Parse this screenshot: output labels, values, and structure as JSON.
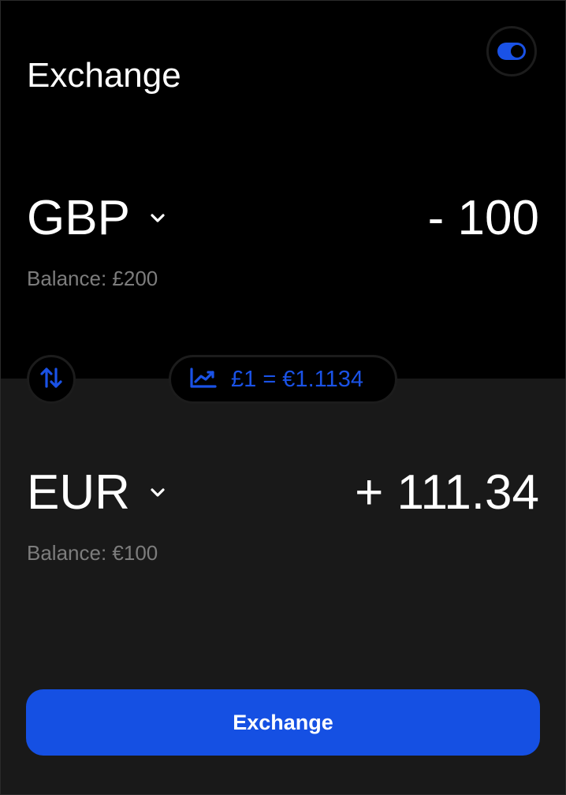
{
  "header": {
    "title": "Exchange"
  },
  "from": {
    "currency": "GBP",
    "amount": "- 100",
    "balance": "Balance: £200"
  },
  "to": {
    "currency": "EUR",
    "amount": "+ 111.34",
    "balance": "Balance: €100"
  },
  "rate": {
    "text": "£1 = €1.1134"
  },
  "actions": {
    "exchange_label": "Exchange"
  },
  "icons": {
    "toggle": "toggle-icon",
    "dropdown": "chevron-down-icon",
    "swap": "swap-vertical-icon",
    "chart": "trending-up-chart-icon"
  },
  "colors": {
    "accent": "#1550e3",
    "top_background": "#000000",
    "bottom_background": "#191919",
    "text_primary": "#ffffff",
    "text_secondary": "#7d7d7d"
  }
}
